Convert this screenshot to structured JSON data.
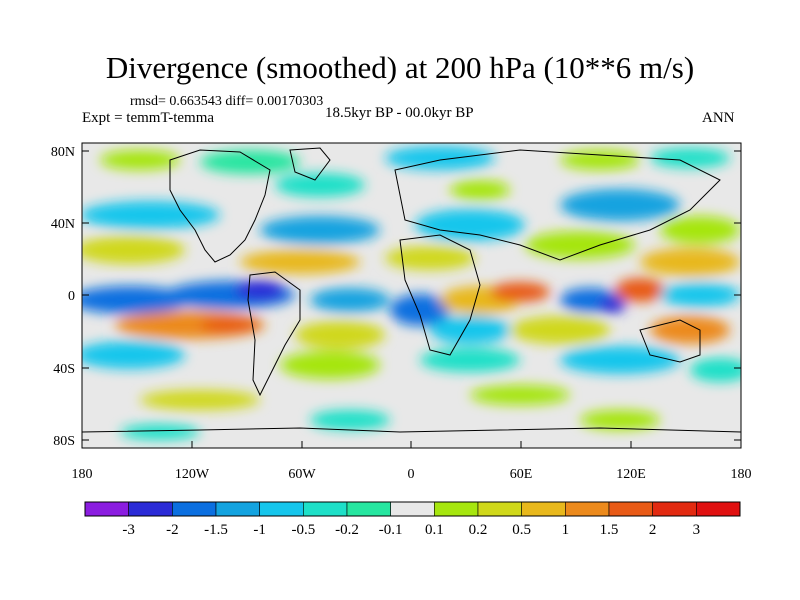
{
  "title": "Divergence (smoothed) at 200 hPa (10**6 m/s)",
  "stats": "rmsd= 0.663543 diff= 0.00170303",
  "experiment": "Expt = temmT-temma",
  "period": "18.5kyr BP - 00.0kyr BP",
  "season": "ANN",
  "lat_labels": [
    "80N",
    "40N",
    "0",
    "40S",
    "80S"
  ],
  "lon_labels": [
    "180",
    "120W",
    "60W",
    "0",
    "60E",
    "120E",
    "180"
  ],
  "colorbar": {
    "labels": [
      "-3",
      "-2",
      "-1.5",
      "-1",
      "-0.5",
      "-0.2",
      "-0.1",
      "0.1",
      "0.2",
      "0.5",
      "1",
      "1.5",
      "2",
      "3"
    ],
    "colors": [
      "#8b1de0",
      "#2b2bd6",
      "#0b6fe0",
      "#13a3e0",
      "#16c6ec",
      "#1ee0c8",
      "#26e6a0",
      "#e8e8e8",
      "#a6e60e",
      "#d0d81a",
      "#e8b81c",
      "#ec8a1c",
      "#e85a16",
      "#e22a10",
      "#e01010"
    ]
  }
}
